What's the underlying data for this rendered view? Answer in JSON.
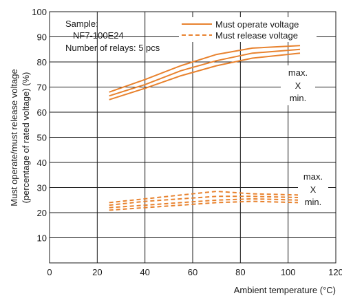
{
  "chart_data": {
    "type": "line",
    "title": "",
    "xlabel": "Ambient temperature (°C)",
    "ylabel_line1": "Must operate/must release voltage",
    "ylabel_line2": "(percentage of rated voltage) (%)",
    "xlim": [
      0,
      120
    ],
    "ylim": [
      0,
      100
    ],
    "xticks": [
      0,
      20,
      40,
      60,
      80,
      100,
      120
    ],
    "yticks": [
      10,
      20,
      30,
      40,
      50,
      60,
      70,
      80,
      90,
      100
    ],
    "grid": true,
    "legend_position": "top-right",
    "sample_info": {
      "line1": "Sample:",
      "line2": "NF7-100E24",
      "line3": "Number of relays: 5 pcs"
    },
    "legend": [
      {
        "label": "Must operate voltage",
        "style": "solid"
      },
      {
        "label": "Must release voltage",
        "style": "dashed"
      }
    ],
    "series_color": "#e8822e",
    "annotations": {
      "operate": {
        "max": "max.",
        "x": "X",
        "min": "min."
      },
      "release": {
        "max": "max.",
        "x": "X",
        "min": "min."
      }
    },
    "series": [
      {
        "group": "operate",
        "style": "solid",
        "x": [
          25,
          40,
          55,
          70,
          85,
          105
        ],
        "y": [
          68.0,
          73.0,
          78.5,
          83.0,
          85.5,
          86.5
        ]
      },
      {
        "group": "operate",
        "style": "solid",
        "x": [
          25,
          40,
          55,
          70,
          85,
          105
        ],
        "y": [
          66.5,
          71.0,
          76.5,
          80.5,
          83.5,
          85.0
        ]
      },
      {
        "group": "operate",
        "style": "solid",
        "x": [
          25,
          40,
          55,
          70,
          85,
          105
        ],
        "y": [
          65.0,
          69.5,
          74.5,
          78.5,
          81.5,
          83.5
        ]
      },
      {
        "group": "release",
        "style": "dashed",
        "x": [
          25,
          40,
          55,
          70,
          85,
          105
        ],
        "y": [
          24.0,
          25.5,
          27.0,
          28.5,
          27.5,
          27.0
        ]
      },
      {
        "group": "release",
        "style": "dashed",
        "x": [
          25,
          40,
          55,
          70,
          85,
          105
        ],
        "y": [
          23.0,
          24.5,
          25.5,
          26.5,
          26.5,
          26.0
        ]
      },
      {
        "group": "release",
        "style": "dashed",
        "x": [
          25,
          40,
          55,
          70,
          85,
          105
        ],
        "y": [
          22.0,
          23.0,
          24.0,
          25.0,
          25.5,
          25.0
        ]
      },
      {
        "group": "release",
        "style": "dashed",
        "x": [
          25,
          40,
          55,
          70,
          85,
          105
        ],
        "y": [
          21.0,
          22.0,
          23.0,
          24.0,
          24.5,
          24.0
        ]
      }
    ]
  }
}
